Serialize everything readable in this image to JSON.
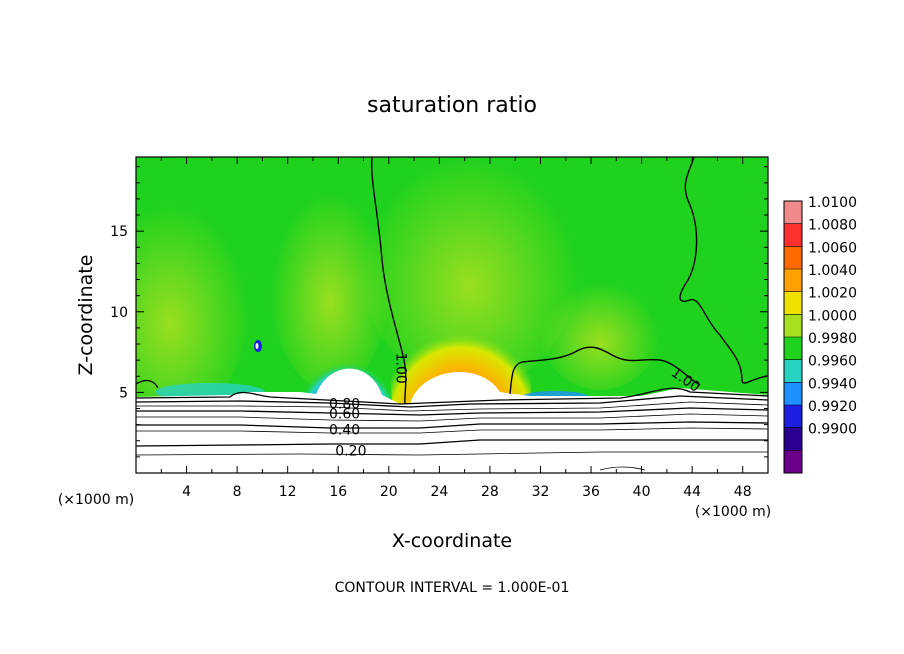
{
  "chart_data": {
    "type": "heatmap",
    "title": "saturation ratio",
    "xlabel": "X-coordinate",
    "ylabel": "Z-coordinate",
    "x_unit_left": "(×1000 m)",
    "x_unit_right": "(×1000 m)",
    "xlim": [
      0,
      50
    ],
    "ylim": [
      0,
      19.6
    ],
    "x_ticks": [
      4,
      8,
      12,
      16,
      20,
      24,
      28,
      32,
      36,
      40,
      44,
      48
    ],
    "y_ticks": [
      5,
      10,
      15
    ],
    "colorbar": {
      "levels": [
        "1.0100",
        "1.0080",
        "1.0060",
        "1.0040",
        "1.0020",
        "1.0000",
        "0.9980",
        "0.9960",
        "0.9940",
        "0.9920",
        "0.9900"
      ],
      "colors": [
        "#f08a8a",
        "#ff3030",
        "#ff6a00",
        "#ffa000",
        "#f0e000",
        "#a8e020",
        "#1ed21e",
        "#28d2c0",
        "#1e90ff",
        "#1e1ee0",
        "#2a0090",
        "#6a008a"
      ]
    },
    "contour_labels": [
      {
        "text": "1.00",
        "x": 21.0,
        "y": 6.5
      },
      {
        "text": "1.00",
        "x": 43.5,
        "y": 5.8
      },
      {
        "text": "0.80",
        "x": 16.5,
        "y": 4.3
      },
      {
        "text": "0.60",
        "x": 16.5,
        "y": 3.7
      },
      {
        "text": "0.40",
        "x": 16.5,
        "y": 2.7
      },
      {
        "text": "0.20",
        "x": 17.0,
        "y": 1.4
      }
    ],
    "footer": "CONTOUR INTERVAL = 1.000E-01"
  }
}
